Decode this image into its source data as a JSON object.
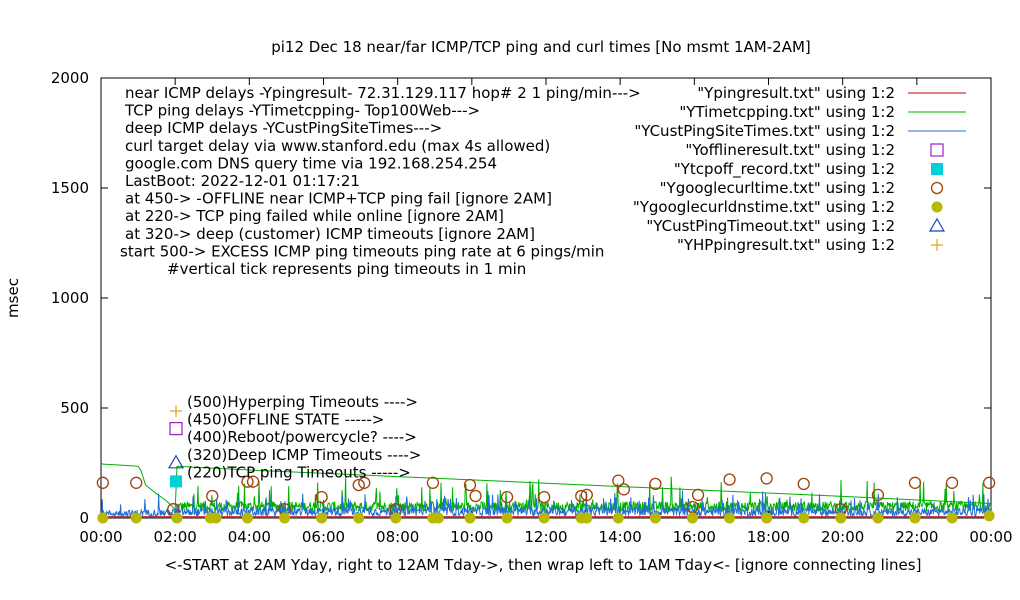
{
  "chart_data": {
    "type": "line",
    "title": "pi12 Dec 18  near/far ICMP/TCP ping and curl times [No msmt 1AM-2AM]",
    "ylabel": "msec",
    "xlabel": "<-START at 2AM Yday, right to 12AM Tday->, then wrap left to 1AM Tday<- [ignore connecting lines]",
    "xlim": [
      0,
      24
    ],
    "ylim": [
      0,
      2000
    ],
    "x_ticks": [
      "00:00",
      "02:00",
      "04:00",
      "06:00",
      "08:00",
      "10:00",
      "12:00",
      "14:00",
      "16:00",
      "18:00",
      "20:00",
      "22:00",
      "00:00"
    ],
    "y_ticks": [
      "0",
      "500",
      "1000",
      "1500",
      "2000"
    ],
    "grid": false,
    "legend_position": "top-right",
    "info_lines": [
      "near ICMP delays -Ypingresult- 72.31.129.117 hop# 2  1 ping/min--->",
      "TCP ping delays -YTimetcpping- Top100Web--->",
      "deep ICMP delays -YCustPingSiteTimes--->",
      "curl target delay via www.stanford.edu (max 4s allowed)",
      "google.com DNS query time via 192.168.254.254",
      "LastBoot: 2022-12-01 01:17:21",
      "at 450-> -OFFLINE near ICMP+TCP ping fail [ignore 2AM]",
      "at 220-> TCP ping failed while online [ignore 2AM]",
      "at 320-> deep (customer) ICMP timeouts [ignore 2AM]",
      "start 500-> EXCESS ICMP ping timeouts ping rate at 6 pings/min",
      "#vertical tick represents ping timeouts in 1 min"
    ],
    "key_lines": [
      "(500)Hyperping Timeouts ---->",
      "(450)OFFLINE STATE ----->",
      "(400)Reboot/powercycle? ---->",
      "(320)Deep ICMP Timeouts ---->",
      "(220)TCP ping Timeouts ----->"
    ],
    "series": [
      {
        "name": "\"Ypingresult.txt\" using 1:2",
        "color": "#c00000",
        "style": "line",
        "x": [
          0,
          24
        ],
        "y": [
          6,
          6
        ]
      },
      {
        "name": "\"YTimetcpping.txt\" using 1:2",
        "color": "#00b000",
        "style": "line",
        "x": [
          0.0,
          0.05,
          0.6,
          1.0,
          1.08,
          1.2,
          1.5,
          1.75,
          2.0,
          2.05,
          4,
          8,
          12,
          16,
          20,
          24
        ],
        "y": [
          250,
          245,
          240,
          235,
          215,
          150,
          110,
          80,
          40,
          235,
          218,
          188,
          158,
          128,
          98,
          66
        ]
      },
      {
        "name": "\"YCustPingSiteTimes.txt\" using 1:2",
        "color": "#1f6fd6",
        "style": "noise",
        "x": [
          0,
          2,
          6,
          10,
          14,
          18,
          22,
          24
        ],
        "y": [
          20,
          25,
          30,
          30,
          30,
          28,
          25,
          30
        ]
      },
      {
        "name": "\"Yofflineresult.txt\" using 1:2",
        "color": "#a020c0",
        "style": "open-square",
        "x": [],
        "y": []
      },
      {
        "name": "\"Ytcpoff_record.txt\" using 1:2",
        "color": "#00d0d8",
        "style": "filled-square",
        "x": [],
        "y": []
      },
      {
        "name": "\"Ygooglecurltime.txt\" using 1:2",
        "color": "#a0400a",
        "style": "open-circle",
        "x": [
          0.05,
          0.95,
          1.95,
          3.0,
          3.95,
          4.1,
          4.95,
          5.95,
          6.95,
          7.1,
          7.95,
          8.95,
          9.95,
          10.1,
          10.95,
          11.95,
          12.95,
          13.1,
          13.95,
          14.1,
          14.95,
          15.95,
          16.1,
          16.95,
          17.95,
          18.95,
          19.95,
          20.95,
          21.95,
          22.95,
          23.95
        ],
        "y": [
          160,
          160,
          40,
          100,
          165,
          165,
          40,
          95,
          150,
          160,
          40,
          160,
          150,
          100,
          95,
          95,
          100,
          105,
          170,
          130,
          155,
          50,
          105,
          175,
          180,
          155,
          40,
          105,
          160,
          160,
          160
        ]
      },
      {
        "name": "\"Ygooglecurldnstime.txt\" using 1:2",
        "color": "#b8b800",
        "style": "filled-circle",
        "x": [
          0.05,
          0.95,
          2.05,
          2.95,
          3.1,
          3.95,
          4.95,
          5.95,
          6.95,
          7.95,
          8.95,
          9.1,
          9.95,
          10.95,
          11.95,
          12.95,
          13.1,
          13.95,
          14.95,
          15.95,
          16.95,
          17.95,
          18.95,
          19.95,
          20.95,
          21.95,
          22.95,
          23.95
        ],
        "y": [
          0,
          0,
          0,
          0,
          0,
          0,
          0,
          0,
          0,
          0,
          0,
          0,
          0,
          0,
          0,
          0,
          0,
          0,
          0,
          0,
          0,
          0,
          0,
          0,
          0,
          0,
          0,
          10
        ]
      },
      {
        "name": "\"YCustPingTimeout.txt\" using 1:2",
        "color": "#2040c0",
        "style": "open-triangle",
        "x": [],
        "y": []
      },
      {
        "name": "\"YHPpingresult.txt\" using 1:2",
        "color": "#e0a020",
        "style": "plus",
        "x": [],
        "y": []
      }
    ]
  }
}
